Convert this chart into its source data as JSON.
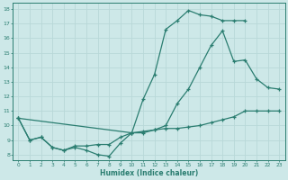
{
  "xlabel": "Humidex (Indice chaleur)",
  "xlim": [
    -0.5,
    23.5
  ],
  "ylim": [
    7.6,
    18.4
  ],
  "xticks": [
    0,
    1,
    2,
    3,
    4,
    5,
    6,
    7,
    8,
    9,
    10,
    11,
    12,
    13,
    14,
    15,
    16,
    17,
    18,
    19,
    20,
    21,
    22,
    23
  ],
  "yticks": [
    8,
    9,
    10,
    11,
    12,
    13,
    14,
    15,
    16,
    17,
    18
  ],
  "bg_color": "#cde8e8",
  "line_color": "#2a7d70",
  "grid_color": "#b8d8d8",
  "line1_x": [
    0,
    1,
    2,
    3,
    4,
    5,
    6,
    7,
    8,
    9,
    10,
    11,
    12,
    13,
    14,
    15,
    16,
    17,
    18,
    19,
    20
  ],
  "line1_y": [
    10.5,
    9.0,
    9.2,
    8.5,
    8.3,
    8.5,
    8.3,
    8.0,
    7.9,
    8.8,
    9.5,
    11.8,
    13.5,
    16.6,
    17.2,
    17.9,
    17.6,
    17.5,
    17.2,
    17.2,
    17.2
  ],
  "line2_x": [
    0,
    1,
    2,
    3,
    4,
    5,
    6,
    7,
    8,
    9,
    10,
    11,
    12,
    13,
    14,
    15,
    16,
    17,
    18,
    19,
    20,
    21,
    22,
    23
  ],
  "line2_y": [
    10.5,
    9.0,
    9.2,
    8.5,
    8.3,
    8.6,
    8.6,
    8.7,
    8.7,
    9.2,
    9.5,
    9.6,
    9.7,
    9.8,
    9.8,
    9.9,
    10.0,
    10.2,
    10.4,
    10.6,
    11.0,
    11.0,
    11.0,
    11.0
  ],
  "line3_x": [
    0,
    10,
    11,
    12,
    13,
    14,
    15,
    16,
    17,
    18,
    19,
    20,
    21,
    22,
    23
  ],
  "line3_y": [
    10.5,
    9.5,
    9.5,
    9.7,
    10.0,
    11.5,
    12.5,
    14.0,
    15.5,
    16.5,
    14.4,
    14.5,
    13.2,
    12.6,
    12.5
  ]
}
